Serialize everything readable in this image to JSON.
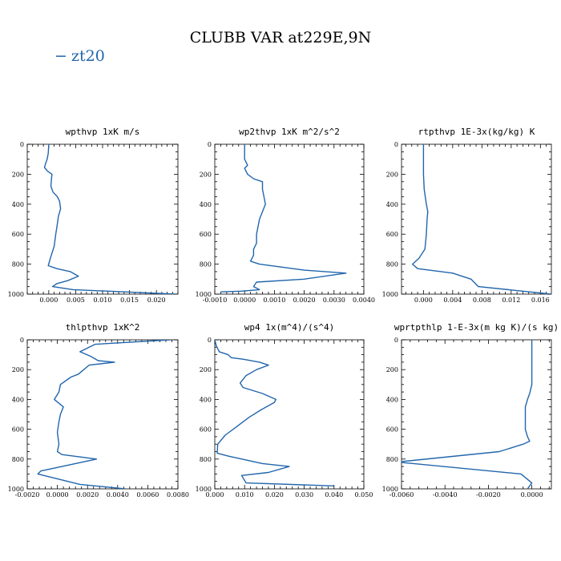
{
  "figure": {
    "title": "CLUBB VAR at229E,9N",
    "legend": {
      "marker": "−",
      "label": "zt20"
    },
    "line_color": "#2166ac"
  },
  "chart_data": [
    {
      "type": "line",
      "title": "wpthvp  1xK m/s",
      "series": [
        {
          "name": "zt20",
          "x": [
            0.0,
            -0.0001,
            -0.0003,
            -0.0006,
            -0.0008,
            -0.0002,
            0.0006,
            0.0005,
            0.0004,
            0.0008,
            0.0016,
            0.002,
            0.0022,
            0.0018,
            0.0016,
            0.0013,
            0.001,
            0.0003,
            -0.0001,
            0.0015,
            0.004,
            0.0055,
            0.0035,
            0.0015,
            0.0007,
            0.0045,
            0.0235
          ],
          "y": [
            0,
            60,
            100,
            130,
            155,
            180,
            200,
            230,
            280,
            320,
            350,
            380,
            430,
            480,
            530,
            600,
            680,
            760,
            810,
            830,
            850,
            880,
            910,
            930,
            950,
            970,
            1000
          ]
        }
      ],
      "xlim": [
        -0.004,
        0.024
      ],
      "ylim": [
        1000,
        0
      ],
      "xticks": [
        0.0,
        0.005,
        0.01,
        0.015,
        0.02
      ],
      "xtick_labels": [
        "0.000",
        "0.005",
        "0.010",
        "0.015",
        "0.020"
      ],
      "yticks": [
        0,
        200,
        400,
        600,
        800,
        1000
      ],
      "ytick_labels": [
        "0",
        "200",
        "400",
        "600",
        "800",
        "1000"
      ]
    },
    {
      "type": "line",
      "title": "wp2thvp  1xK m^2/s^2",
      "series": [
        {
          "name": "zt20",
          "x": [
            0.0,
            0.0,
            0.0001,
            0.0,
            0.0001,
            0.0003,
            0.0006,
            0.0006,
            0.0007,
            0.0006,
            0.0005,
            0.0004,
            0.0004,
            0.0003,
            0.0003,
            0.0002,
            0.0005,
            0.002,
            0.0034,
            0.002,
            0.0004,
            0.0003,
            0.0005,
            -0.0001,
            -0.0008
          ],
          "y": [
            0,
            100,
            140,
            160,
            200,
            230,
            250,
            300,
            400,
            450,
            500,
            600,
            660,
            700,
            740,
            780,
            800,
            840,
            860,
            900,
            920,
            950,
            970,
            980,
            985
          ]
        }
      ],
      "xlim": [
        -0.001,
        0.004
      ],
      "ylim": [
        1000,
        0
      ],
      "xticks": [
        -0.001,
        0.0,
        0.001,
        0.002,
        0.003,
        0.004
      ],
      "xtick_labels": [
        "-0.0010",
        "0.0000",
        "0.0010",
        "0.0020",
        "0.0030",
        "0.0040"
      ],
      "yticks": [
        0,
        200,
        400,
        600,
        800,
        1000
      ],
      "ytick_labels": [
        "0",
        "200",
        "400",
        "600",
        "800",
        "1000"
      ]
    },
    {
      "type": "line",
      "title": "rtpthvp  1E-3x(kg/kg) K",
      "series": [
        {
          "name": "zt20",
          "x": [
            0.0,
            0.0,
            0.0001,
            0.0004,
            0.0006,
            0.0005,
            0.0004,
            0.0002,
            -0.0006,
            -0.0015,
            -0.0008,
            0.004,
            0.0065,
            0.0075,
            0.0175
          ],
          "y": [
            0,
            200,
            300,
            400,
            450,
            500,
            600,
            700,
            760,
            800,
            830,
            860,
            900,
            950,
            1000
          ]
        }
      ],
      "xlim": [
        -0.003,
        0.0175
      ],
      "ylim": [
        1000,
        0
      ],
      "xticks": [
        0.0,
        0.004,
        0.008,
        0.012,
        0.016
      ],
      "xtick_labels": [
        "0.000",
        "0.004",
        "0.008",
        "0.012",
        "0.016"
      ],
      "yticks": [
        0,
        200,
        400,
        600,
        800,
        1000
      ],
      "ytick_labels": [
        "0",
        "200",
        "400",
        "600",
        "800",
        "1000"
      ]
    },
    {
      "type": "line",
      "title": "thlpthvp  1xK^2",
      "series": [
        {
          "name": "zt20",
          "x": [
            0.0075,
            0.0025,
            0.0015,
            0.0022,
            0.0027,
            0.0038,
            0.0021,
            0.0014,
            0.0009,
            0.0002,
            0.0001,
            -0.0002,
            0.0004,
            0.0002,
            0.0001,
            0.0,
            0.0001,
            0.0,
            0.0003,
            0.0026,
            -0.0011,
            -0.0013,
            0.0015,
            0.0045
          ],
          "y": [
            0,
            30,
            80,
            110,
            140,
            150,
            170,
            230,
            250,
            300,
            350,
            400,
            450,
            500,
            550,
            620,
            700,
            750,
            770,
            800,
            880,
            900,
            970,
            1000
          ]
        }
      ],
      "xlim": [
        -0.002,
        0.008
      ],
      "ylim": [
        1000,
        0
      ],
      "xticks": [
        -0.002,
        0.0,
        0.002,
        0.004,
        0.006,
        0.008
      ],
      "xtick_labels": [
        "-0.0020",
        "0.0000",
        "0.0020",
        "0.0040",
        "0.0060",
        "0.0080"
      ],
      "yticks": [
        0,
        200,
        400,
        600,
        800,
        1000
      ],
      "ytick_labels": [
        "0",
        "200",
        "400",
        "600",
        "800",
        "1000"
      ]
    },
    {
      "type": "line",
      "title": "wp4  1x(m^4)/(s^4)",
      "series": [
        {
          "name": "zt20",
          "x": [
            0.0,
            0.0005,
            0.0015,
            0.0045,
            0.0055,
            0.0095,
            0.015,
            0.018,
            0.014,
            0.0105,
            0.0085,
            0.0095,
            0.016,
            0.0205,
            0.02,
            0.0155,
            0.0115,
            0.0075,
            0.0035,
            0.001,
            0.0008,
            0.0045,
            0.016,
            0.025,
            0.018,
            0.009,
            0.0105,
            0.04
          ],
          "y": [
            0,
            40,
            80,
            100,
            120,
            130,
            150,
            170,
            200,
            240,
            290,
            320,
            360,
            400,
            420,
            470,
            520,
            580,
            640,
            700,
            760,
            780,
            830,
            850,
            890,
            910,
            960,
            980
          ]
        }
      ],
      "xlim": [
        0.0,
        0.05
      ],
      "ylim": [
        1000,
        0
      ],
      "xticks": [
        0.0,
        0.01,
        0.02,
        0.03,
        0.04,
        0.05
      ],
      "xtick_labels": [
        "0.000",
        "0.010",
        "0.020",
        "0.030",
        "0.040",
        "0.050"
      ],
      "yticks": [
        0,
        200,
        400,
        600,
        800,
        1000
      ],
      "ytick_labels": [
        "0",
        "200",
        "400",
        "600",
        "800",
        "1000"
      ]
    },
    {
      "type": "line",
      "title": "wprtpthlp  1-E-3x(m kg K)/(s kg)",
      "series": [
        {
          "name": "zt20",
          "x": [
            0.0,
            0.0,
            0.0,
            -0.0001,
            -0.0002,
            -0.0003,
            -0.0003,
            -0.0003,
            -0.0002,
            -0.0001,
            -0.0004,
            -0.0015,
            -0.0062,
            -0.0005,
            0.0,
            -0.0002
          ],
          "y": [
            0,
            100,
            300,
            360,
            400,
            450,
            500,
            600,
            650,
            680,
            700,
            750,
            820,
            900,
            960,
            1000
          ]
        }
      ],
      "xlim": [
        -0.006,
        0.0009
      ],
      "ylim": [
        1000,
        0
      ],
      "xticks": [
        -0.006,
        -0.004,
        -0.002,
        0.0
      ],
      "xtick_labels": [
        "-0.0060",
        "-0.0040",
        "-0.0020",
        "0.0000"
      ],
      "yticks": [
        0,
        200,
        400,
        600,
        800,
        1000
      ],
      "ytick_labels": [
        "0",
        "200",
        "400",
        "600",
        "800",
        "1000"
      ]
    }
  ]
}
